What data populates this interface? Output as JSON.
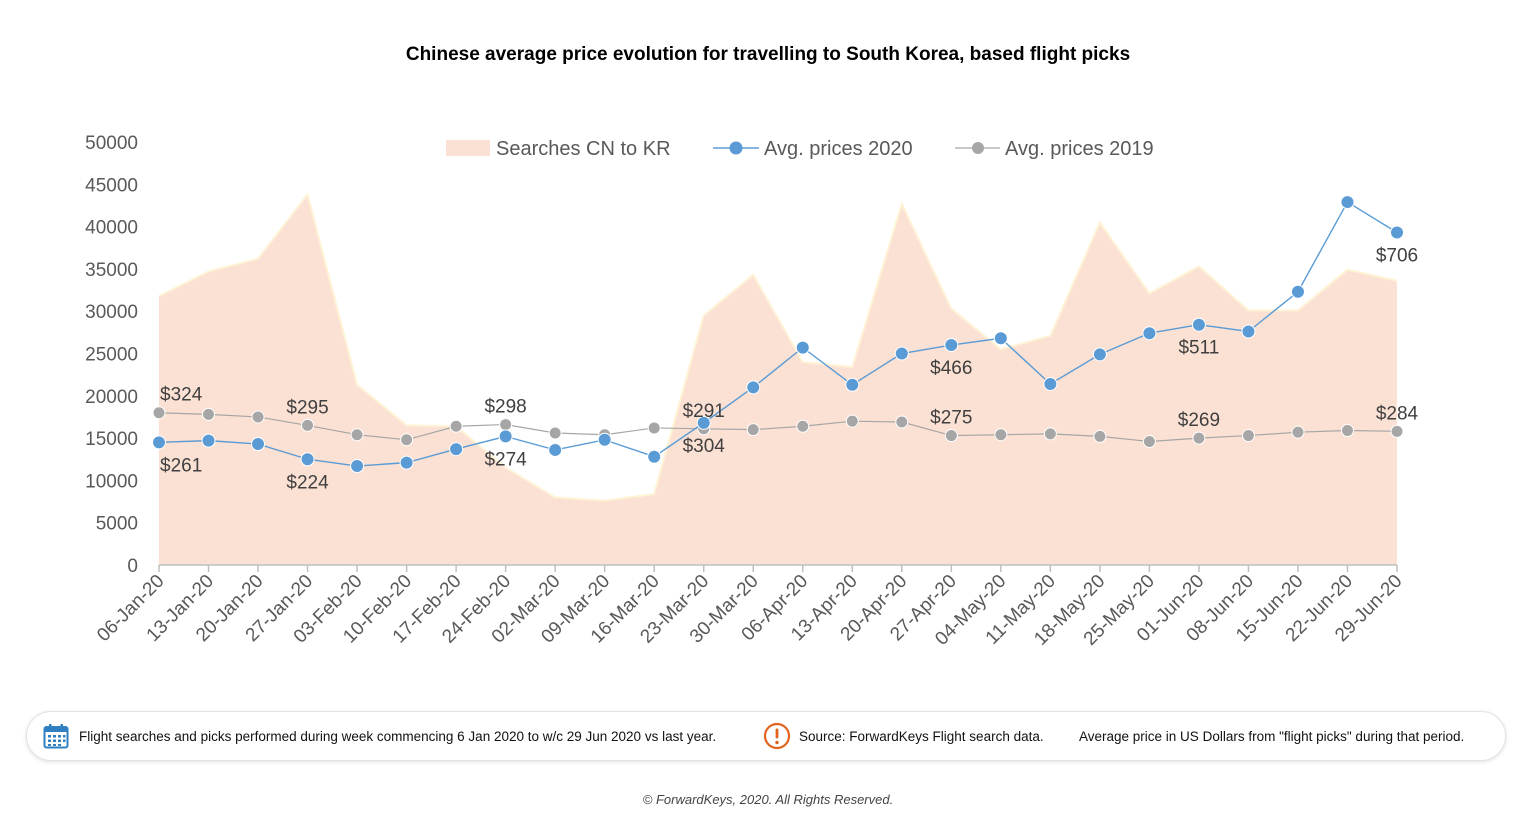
{
  "title": "Chinese average price evolution for travelling to South Korea, based flight picks",
  "chart_data": {
    "type": "line",
    "categories": [
      "06-Jan-20",
      "13-Jan-20",
      "20-Jan-20",
      "27-Jan-20",
      "03-Feb-20",
      "10-Feb-20",
      "17-Feb-20",
      "24-Feb-20",
      "02-Mar-20",
      "09-Mar-20",
      "16-Mar-20",
      "23-Mar-20",
      "30-Mar-20",
      "06-Apr-20",
      "13-Apr-20",
      "20-Apr-20",
      "27-Apr-20",
      "04-May-20",
      "11-May-20",
      "18-May-20",
      "25-May-20",
      "01-Jun-20",
      "08-Jun-20",
      "15-Jun-20",
      "22-Jun-20",
      "29-Jun-20"
    ],
    "ylim": [
      0,
      50000
    ],
    "yticks": [
      0,
      5000,
      10000,
      15000,
      20000,
      25000,
      30000,
      35000,
      40000,
      45000,
      50000
    ],
    "legend_position": "top",
    "series": [
      {
        "name": "Searches CN to KR",
        "kind": "area",
        "color": "#fbe1d3",
        "values": [
          31800,
          34700,
          36200,
          43800,
          21300,
          16500,
          16400,
          11500,
          8000,
          7600,
          8400,
          29500,
          34300,
          24000,
          23400,
          42700,
          30300,
          25500,
          27100,
          40500,
          32100,
          35300,
          30100,
          30100,
          34900,
          33600
        ]
      },
      {
        "name": "Avg. prices 2020",
        "kind": "line",
        "color": "#5b9bd5",
        "values": [
          14500,
          14700,
          14300,
          12500,
          11700,
          12100,
          13700,
          15200,
          13600,
          14800,
          12800,
          16800,
          21000,
          25700,
          21300,
          25000,
          26000,
          26800,
          21400,
          24900,
          27400,
          28400,
          27600,
          32300,
          42900,
          39300
        ],
        "data_labels": [
          {
            "index": 0,
            "text": "$261",
            "position": "below"
          },
          {
            "index": 3,
            "text": "$224",
            "position": "below"
          },
          {
            "index": 7,
            "text": "$274",
            "position": "below"
          },
          {
            "index": 11,
            "text": "$304",
            "position": "below"
          },
          {
            "index": 16,
            "text": "$466",
            "position": "below"
          },
          {
            "index": 21,
            "text": "$511",
            "position": "below"
          },
          {
            "index": 25,
            "text": "$706",
            "position": "below"
          }
        ]
      },
      {
        "name": "Avg. prices 2019",
        "kind": "line",
        "color": "#a6a6a6",
        "values": [
          18000,
          17800,
          17500,
          16500,
          15400,
          14800,
          16400,
          16600,
          15600,
          15400,
          16200,
          16100,
          16000,
          16400,
          17000,
          16900,
          15300,
          15400,
          15500,
          15200,
          14600,
          15000,
          15300,
          15700,
          15900,
          15800
        ],
        "data_labels": [
          {
            "index": 0,
            "text": "$324",
            "position": "above"
          },
          {
            "index": 3,
            "text": "$295",
            "position": "above"
          },
          {
            "index": 7,
            "text": "$298",
            "position": "above"
          },
          {
            "index": 11,
            "text": "$291",
            "position": "above"
          },
          {
            "index": 16,
            "text": "$275",
            "position": "above"
          },
          {
            "index": 21,
            "text": "$269",
            "position": "above"
          },
          {
            "index": 25,
            "text": "$284",
            "position": "above"
          }
        ]
      }
    ]
  },
  "footer": {
    "calendar_icon": "calendar-icon",
    "period_text": "Flight searches and picks performed during week commencing 6 Jan 2020 to w/c 29 Jun 2020 vs last year.",
    "source_icon": "exclamation-circle-icon",
    "source_text": "Source: ForwardKeys Flight search data.",
    "price_note": "Average price in US Dollars from \"flight picks\" during that period.",
    "icon_color_calendar": "#2f7fc1",
    "icon_color_source": "#e0641c"
  },
  "copyright": "© ForwardKeys, 2020. All Rights Reserved."
}
